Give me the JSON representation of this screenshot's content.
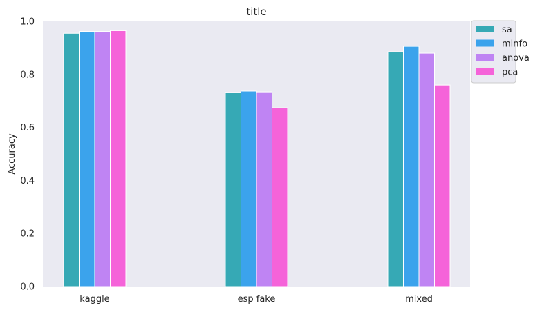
{
  "chart_data": {
    "type": "bar",
    "title": "title",
    "xlabel": "",
    "ylabel": "Accuracy",
    "ylim": [
      0,
      1.0
    ],
    "yticks": [
      "0.0",
      "0.2",
      "0.4",
      "0.6",
      "0.8",
      "1.0"
    ],
    "grid": false,
    "legend_position": "outside-top-right",
    "categories": [
      "kaggle",
      "esp fake",
      "mixed"
    ],
    "series": [
      {
        "name": "sa",
        "color": "#36a9b5",
        "values": [
          0.955,
          0.732,
          0.885
        ]
      },
      {
        "name": "minfo",
        "color": "#3ba3ec",
        "values": [
          0.962,
          0.737,
          0.906
        ]
      },
      {
        "name": "anova",
        "color": "#bf84f3",
        "values": [
          0.962,
          0.734,
          0.88
        ]
      },
      {
        "name": "pca",
        "color": "#f563d9",
        "values": [
          0.965,
          0.674,
          0.76
        ]
      }
    ],
    "plot_background": "#eaeaf2"
  }
}
